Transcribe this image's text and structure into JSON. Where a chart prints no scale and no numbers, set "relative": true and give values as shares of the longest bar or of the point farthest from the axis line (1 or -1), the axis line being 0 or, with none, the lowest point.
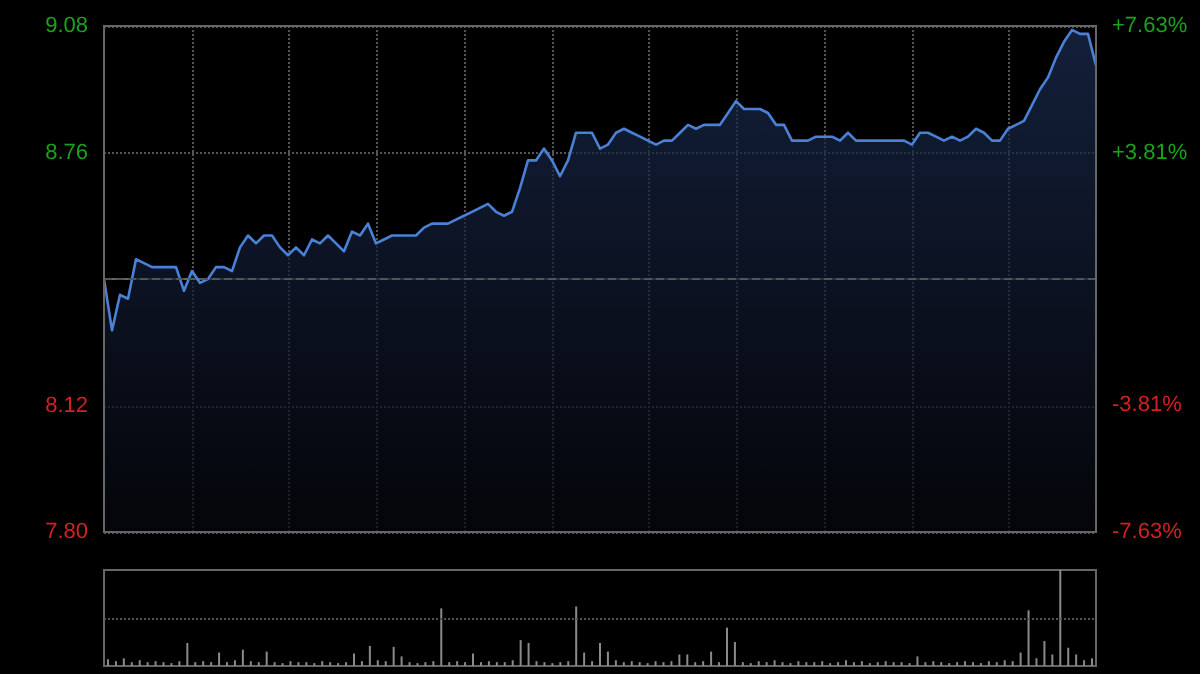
{
  "chart_data": [
    {
      "type": "area",
      "categories": [
        null,
        null,
        null,
        null,
        null,
        null,
        null,
        null,
        null,
        null,
        null,
        null,
        null,
        null,
        null,
        null,
        null,
        null,
        null,
        null,
        null,
        null,
        null,
        null,
        null,
        null,
        null,
        null,
        null,
        null,
        null,
        null,
        null,
        null,
        null,
        null,
        null,
        null,
        null,
        null,
        null,
        null,
        null,
        null,
        null,
        null,
        null,
        null,
        null,
        null,
        null,
        null,
        null,
        null,
        null,
        null,
        null,
        null,
        null,
        null,
        null,
        null,
        null,
        null,
        null,
        null,
        null,
        null,
        null,
        null,
        null,
        null,
        null,
        null,
        null,
        null,
        null,
        null,
        null,
        null,
        null,
        null,
        null,
        null,
        null,
        null,
        null,
        null,
        null,
        null,
        null,
        null,
        null,
        null,
        null,
        null,
        null,
        null,
        null,
        null,
        null,
        null,
        null,
        null,
        null,
        null,
        null,
        null,
        null,
        null,
        null,
        null,
        null,
        null,
        null,
        null,
        null,
        null,
        null,
        null,
        null,
        null,
        null,
        null,
        null
      ],
      "series": [
        {
          "color": "#4a80d6",
          "values": [
            8.44,
            8.31,
            8.4,
            8.39,
            8.49,
            8.48,
            8.47,
            8.47,
            8.47,
            8.47,
            8.41,
            8.46,
            8.43,
            8.44,
            8.47,
            8.47,
            8.46,
            8.52,
            8.55,
            8.53,
            8.55,
            8.55,
            8.52,
            8.5,
            8.52,
            8.5,
            8.54,
            8.53,
            8.55,
            8.53,
            8.51,
            8.56,
            8.55,
            8.58,
            8.53,
            8.54,
            8.55,
            8.55,
            8.55,
            8.55,
            8.57,
            8.58,
            8.58,
            8.58,
            8.59,
            8.6,
            8.61,
            8.62,
            8.63,
            8.61,
            8.6,
            8.61,
            8.67,
            8.74,
            8.74,
            8.77,
            8.74,
            8.7,
            8.74,
            8.81,
            8.81,
            8.81,
            8.77,
            8.78,
            8.81,
            8.82,
            8.81,
            8.8,
            8.79,
            8.78,
            8.79,
            8.79,
            8.81,
            8.83,
            8.82,
            8.83,
            8.83,
            8.83,
            8.86,
            8.89,
            8.87,
            8.87,
            8.87,
            8.86,
            8.83,
            8.83,
            8.79,
            8.79,
            8.79,
            8.8,
            8.8,
            8.8,
            8.79,
            8.81,
            8.79,
            8.79,
            8.79,
            8.79,
            8.79,
            8.79,
            8.79,
            8.78,
            8.81,
            8.81,
            8.8,
            8.79,
            8.8,
            8.79,
            8.8,
            8.82,
            8.81,
            8.79,
            8.79,
            8.82,
            8.83,
            8.84,
            8.88,
            8.92,
            8.95,
            9.0,
            9.04,
            9.07,
            9.06,
            9.06,
            8.98
          ]
        }
      ],
      "ylim": [
        7.8,
        9.08
      ],
      "yticks": [
        {
          "value": 7.8,
          "label": "7.80"
        },
        8.12,
        8.76,
        9.08
      ],
      "y2lim": [
        -7.63,
        7.63
      ],
      "y2ticks": [
        {
          "value": -7.63,
          "label": "-7.63%"
        },
        {
          "value": -3.81,
          "label": "-3.81%"
        },
        {
          "value": 3.81,
          "label": "+3.81%"
        },
        {
          "value": 7.63,
          "label": "+7.63%"
        }
      ],
      "ref_lines": [
        {
          "axis": "y",
          "value": 8.44,
          "color": "#555555",
          "line_style": "dashed"
        }
      ],
      "grid": true
    },
    {
      "type": "bar",
      "relative": true,
      "ref_lines": [
        {
          "axis": "y",
          "value": 0.5,
          "color": "#555555",
          "line_style": "dotted"
        }
      ],
      "categories": [
        null,
        null,
        null,
        null,
        null,
        null,
        null,
        null,
        null,
        null,
        null,
        null,
        null,
        null,
        null,
        null,
        null,
        null,
        null,
        null,
        null,
        null,
        null,
        null,
        null,
        null,
        null,
        null,
        null,
        null,
        null,
        null,
        null,
        null,
        null,
        null,
        null,
        null,
        null,
        null,
        null,
        null,
        null,
        null,
        null,
        null,
        null,
        null,
        null,
        null,
        null,
        null,
        null,
        null,
        null,
        null,
        null,
        null,
        null,
        null,
        null,
        null,
        null,
        null,
        null,
        null,
        null,
        null,
        null,
        null,
        null,
        null,
        null,
        null,
        null,
        null,
        null,
        null,
        null,
        null,
        null,
        null,
        null,
        null,
        null,
        null,
        null,
        null,
        null,
        null,
        null,
        null,
        null,
        null,
        null,
        null,
        null,
        null,
        null,
        null,
        null,
        null,
        null,
        null,
        null,
        null,
        null,
        null,
        null,
        null,
        null,
        null,
        null,
        null,
        null,
        null,
        null,
        null,
        null,
        null,
        null,
        null,
        null,
        null,
        null
      ],
      "color": "#8a8a8a",
      "values": [
        0.07,
        0.05,
        0.08,
        0.04,
        0.06,
        0.04,
        0.05,
        0.04,
        0.03,
        0.05,
        0.24,
        0.04,
        0.05,
        0.04,
        0.14,
        0.04,
        0.06,
        0.17,
        0.05,
        0.04,
        0.15,
        0.04,
        0.03,
        0.05,
        0.04,
        0.04,
        0.03,
        0.05,
        0.04,
        0.03,
        0.04,
        0.13,
        0.05,
        0.21,
        0.06,
        0.05,
        0.2,
        0.1,
        0.04,
        0.03,
        0.04,
        0.05,
        0.6,
        0.04,
        0.05,
        0.04,
        0.13,
        0.04,
        0.05,
        0.04,
        0.04,
        0.06,
        0.27,
        0.24,
        0.05,
        0.04,
        0.03,
        0.04,
        0.05,
        0.62,
        0.14,
        0.05,
        0.24,
        0.15,
        0.06,
        0.04,
        0.05,
        0.04,
        0.03,
        0.05,
        0.04,
        0.05,
        0.12,
        0.12,
        0.04,
        0.05,
        0.15,
        0.04,
        0.4,
        0.25,
        0.04,
        0.03,
        0.05,
        0.04,
        0.06,
        0.04,
        0.03,
        0.05,
        0.04,
        0.04,
        0.05,
        0.03,
        0.04,
        0.06,
        0.04,
        0.05,
        0.03,
        0.04,
        0.05,
        0.04,
        0.04,
        0.03,
        0.1,
        0.04,
        0.05,
        0.04,
        0.03,
        0.04,
        0.05,
        0.04,
        0.03,
        0.05,
        0.04,
        0.06,
        0.05,
        0.14,
        0.58,
        0.08,
        0.26,
        0.12,
        1,
        0.19,
        0.12,
        0.06,
        0.08
      ]
    }
  ]
}
